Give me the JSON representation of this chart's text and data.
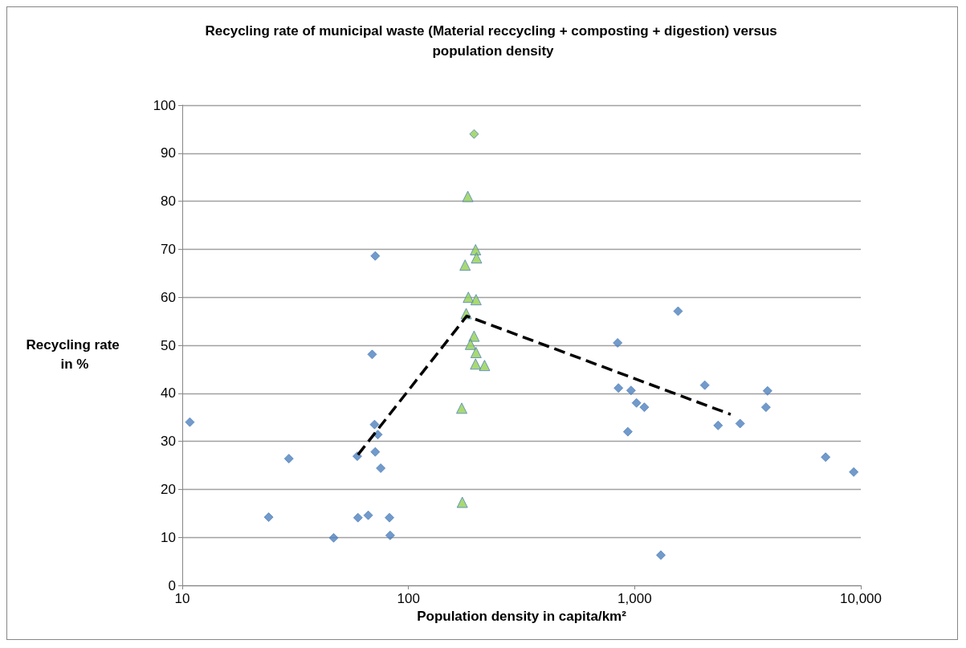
{
  "chart_data": {
    "type": "scatter",
    "title": "Recycling rate of municipal waste (Material reccycling + composting + digestion) versus population density",
    "xlabel": "Population density in capita/km²",
    "ylabel": "Recycling rate in %",
    "log": "x",
    "grid": "y",
    "xlim": [
      10,
      10000
    ],
    "xticks": [
      10,
      100,
      {
        "value": 1000,
        "label": "1,000"
      },
      {
        "value": 10000,
        "label": "10,000"
      }
    ],
    "ylim": [
      0,
      100
    ],
    "yticks": [
      0,
      10,
      20,
      30,
      40,
      50,
      60,
      70,
      80,
      90,
      100
    ],
    "series": [
      {
        "marker": "diamond",
        "color": "#4f81bd",
        "x": [
          10.8,
          24.1,
          29.6,
          46.7,
          59.8,
          59.4,
          66.4,
          69.1,
          71.3,
          70.8,
          73.2,
          71.3,
          75.4,
          82.4,
          83,
          841,
          848,
          933,
          964,
          1019,
          1104,
          1306,
          1556,
          2042,
          2339,
          2926,
          3808,
          3870,
          6990,
          9303
        ],
        "values": [
          34.0,
          14.2,
          26.4,
          9.9,
          14.1,
          26.9,
          14.6,
          48.1,
          68.6,
          33.5,
          31.4,
          27.8,
          24.4,
          14.1,
          10.4,
          50.5,
          41.1,
          32.0,
          40.6,
          38.0,
          37.1,
          6.3,
          57.1,
          41.7,
          33.3,
          33.7,
          37.1,
          40.5,
          26.7,
          23.6
        ]
      },
      {
        "marker": "diamond",
        "color": "#92d050",
        "x": [
          195
        ],
        "values": [
          94.0
        ]
      },
      {
        "marker": "triangle",
        "color": "#92d050",
        "x": [
          183,
          178,
          198,
          200,
          184,
          199,
          180,
          195,
          188,
          199,
          198,
          217,
          172,
          173
        ],
        "values": [
          81.0,
          66.7,
          69.9,
          68.2,
          60.0,
          59.5,
          56.6,
          51.9,
          50.2,
          48.5,
          46.1,
          45.8,
          36.9,
          17.3
        ]
      },
      {
        "type": "line",
        "marker": "none",
        "line_style": "dashed",
        "color": "#000000",
        "x": [
          59.8,
          181,
          2658
        ],
        "values": [
          27.2,
          56.1,
          35.6
        ]
      }
    ]
  }
}
